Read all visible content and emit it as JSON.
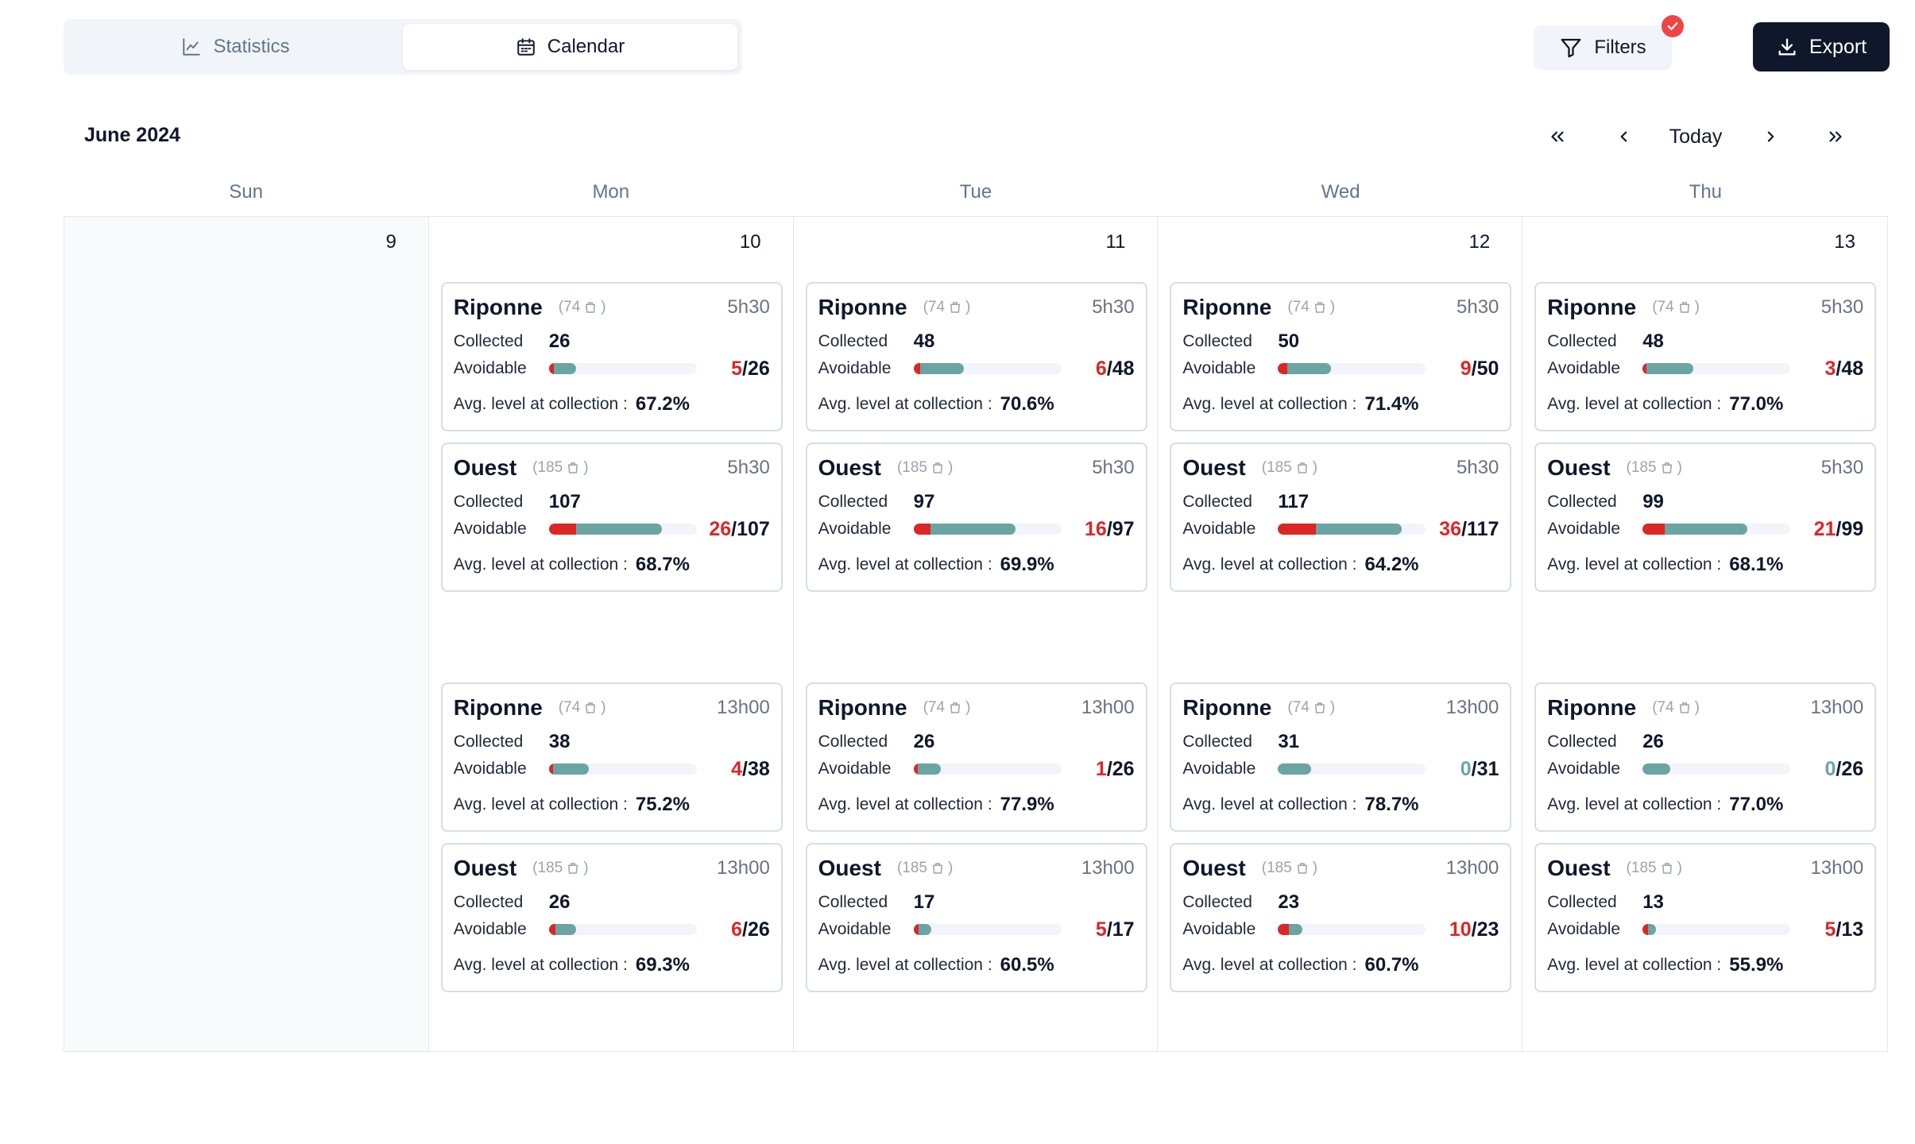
{
  "tabs": [
    {
      "label": "Statistics",
      "active": false,
      "icon": "line-chart-icon"
    },
    {
      "label": "Calendar",
      "active": true,
      "icon": "calendar-icon"
    }
  ],
  "toolbar": {
    "filters_label": "Filters",
    "export_label": "Export"
  },
  "calendar": {
    "month_title": "June 2024",
    "today_label": "Today",
    "weekdays": [
      "Sun",
      "Mon",
      "Tue",
      "Wed",
      "Thu"
    ],
    "days": [
      {
        "date": "9",
        "weekend": true,
        "shifts": []
      },
      {
        "date": "10",
        "weekend": false,
        "shifts": [
          {
            "name": "Riponne",
            "count": "(74",
            "time": "5h30",
            "collected": "26",
            "avoidable": "5",
            "total": "26",
            "avg": "67.2%"
          },
          {
            "name": "Ouest",
            "count": "(185",
            "time": "5h30",
            "collected": "107",
            "avoidable": "26",
            "total": "107",
            "avg": "68.7%"
          },
          {
            "name": "Riponne",
            "count": "(74",
            "time": "13h00",
            "collected": "38",
            "avoidable": "4",
            "total": "38",
            "avg": "75.2%"
          },
          {
            "name": "Ouest",
            "count": "(185",
            "time": "13h00",
            "collected": "26",
            "avoidable": "6",
            "total": "26",
            "avg": "69.3%"
          }
        ]
      },
      {
        "date": "11",
        "weekend": false,
        "shifts": [
          {
            "name": "Riponne",
            "count": "(74",
            "time": "5h30",
            "collected": "48",
            "avoidable": "6",
            "total": "48",
            "avg": "70.6%"
          },
          {
            "name": "Ouest",
            "count": "(185",
            "time": "5h30",
            "collected": "97",
            "avoidable": "16",
            "total": "97",
            "avg": "69.9%"
          },
          {
            "name": "Riponne",
            "count": "(74",
            "time": "13h00",
            "collected": "26",
            "avoidable": "1",
            "total": "26",
            "avg": "77.9%"
          },
          {
            "name": "Ouest",
            "count": "(185",
            "time": "13h00",
            "collected": "17",
            "avoidable": "5",
            "total": "17",
            "avg": "60.5%"
          }
        ]
      },
      {
        "date": "12",
        "weekend": false,
        "shifts": [
          {
            "name": "Riponne",
            "count": "(74",
            "time": "5h30",
            "collected": "50",
            "avoidable": "9",
            "total": "50",
            "avg": "71.4%"
          },
          {
            "name": "Ouest",
            "count": "(185",
            "time": "5h30",
            "collected": "117",
            "avoidable": "36",
            "total": "117",
            "avg": "64.2%"
          },
          {
            "name": "Riponne",
            "count": "(74",
            "time": "13h00",
            "collected": "31",
            "avoidable": "0",
            "total": "31",
            "avg": "78.7%"
          },
          {
            "name": "Ouest",
            "count": "(185",
            "time": "13h00",
            "collected": "23",
            "avoidable": "10",
            "total": "23",
            "avg": "60.7%"
          }
        ]
      },
      {
        "date": "13",
        "weekend": false,
        "shifts": [
          {
            "name": "Riponne",
            "count": "(74",
            "time": "5h30",
            "collected": "48",
            "avoidable": "3",
            "total": "48",
            "avg": "77.0%"
          },
          {
            "name": "Ouest",
            "count": "(185",
            "time": "5h30",
            "collected": "99",
            "avoidable": "21",
            "total": "99",
            "avg": "68.1%"
          },
          {
            "name": "Riponne",
            "count": "(74",
            "time": "13h00",
            "collected": "26",
            "avoidable": "0",
            "total": "26",
            "avg": "77.0%"
          },
          {
            "name": "Ouest",
            "count": "(185",
            "time": "13h00",
            "collected": "13",
            "avoidable": "5",
            "total": "13",
            "avg": "55.9%"
          }
        ]
      }
    ]
  },
  "labels": {
    "collected": "Collected",
    "avoidable": "Avoidable",
    "avg": "Avg. level at collection :",
    "close_paren": ")"
  },
  "colors": {
    "accent_dark": "#0f172a",
    "avoidable_red": "#dc2626",
    "bar_teal": "#6ba5a3",
    "badge_red": "#ef4444"
  }
}
